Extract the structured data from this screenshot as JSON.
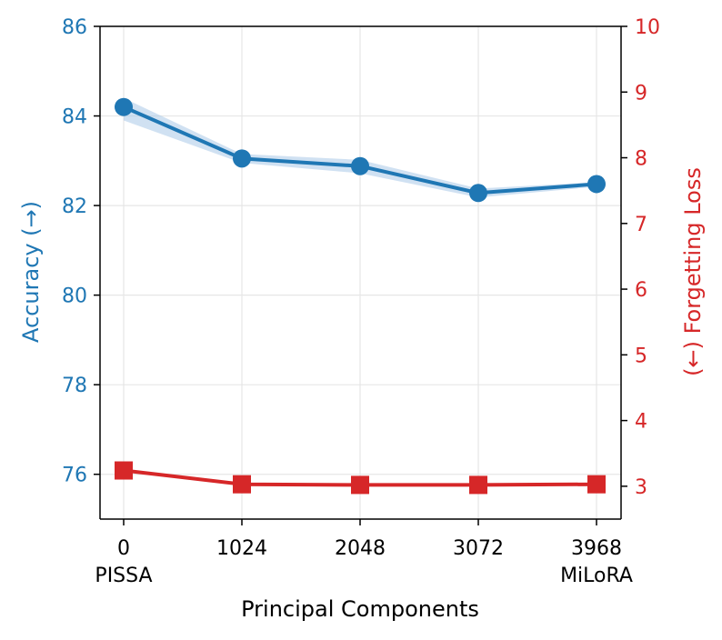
{
  "chart_data": {
    "type": "line",
    "title": "",
    "xlabel": "Principal Components",
    "x_ticks": [
      "0",
      "1024",
      "2048",
      "3072",
      "3968"
    ],
    "x_sublabels": [
      "PISSA",
      "",
      "",
      "",
      "MiLoRA"
    ],
    "left_axis": {
      "label": "Accuracy (→)",
      "color": "#1f77b4",
      "ylim": [
        75,
        86
      ],
      "ticks": [
        76,
        78,
        80,
        82,
        84,
        86
      ]
    },
    "right_axis": {
      "label": "(←) Forgetting Loss",
      "color": "#d62728",
      "ylim": [
        2.5,
        10
      ],
      "ticks": [
        3,
        4,
        5,
        6,
        7,
        8,
        9,
        10
      ]
    },
    "grid": true,
    "series": [
      {
        "name": "Accuracy",
        "axis": "left",
        "marker": "circle",
        "color": "#1f77b4",
        "band_color": "#a9c9e8",
        "values": [
          84.2,
          83.05,
          82.88,
          82.28,
          82.48
        ],
        "band_low": [
          83.9,
          82.95,
          82.72,
          82.18,
          82.42
        ],
        "band_high": [
          84.4,
          83.15,
          83.02,
          82.38,
          82.52
        ]
      },
      {
        "name": "Forgetting Loss",
        "axis": "right",
        "marker": "square",
        "color": "#d62728",
        "values": [
          3.24,
          3.03,
          3.02,
          3.02,
          3.03
        ]
      }
    ]
  }
}
